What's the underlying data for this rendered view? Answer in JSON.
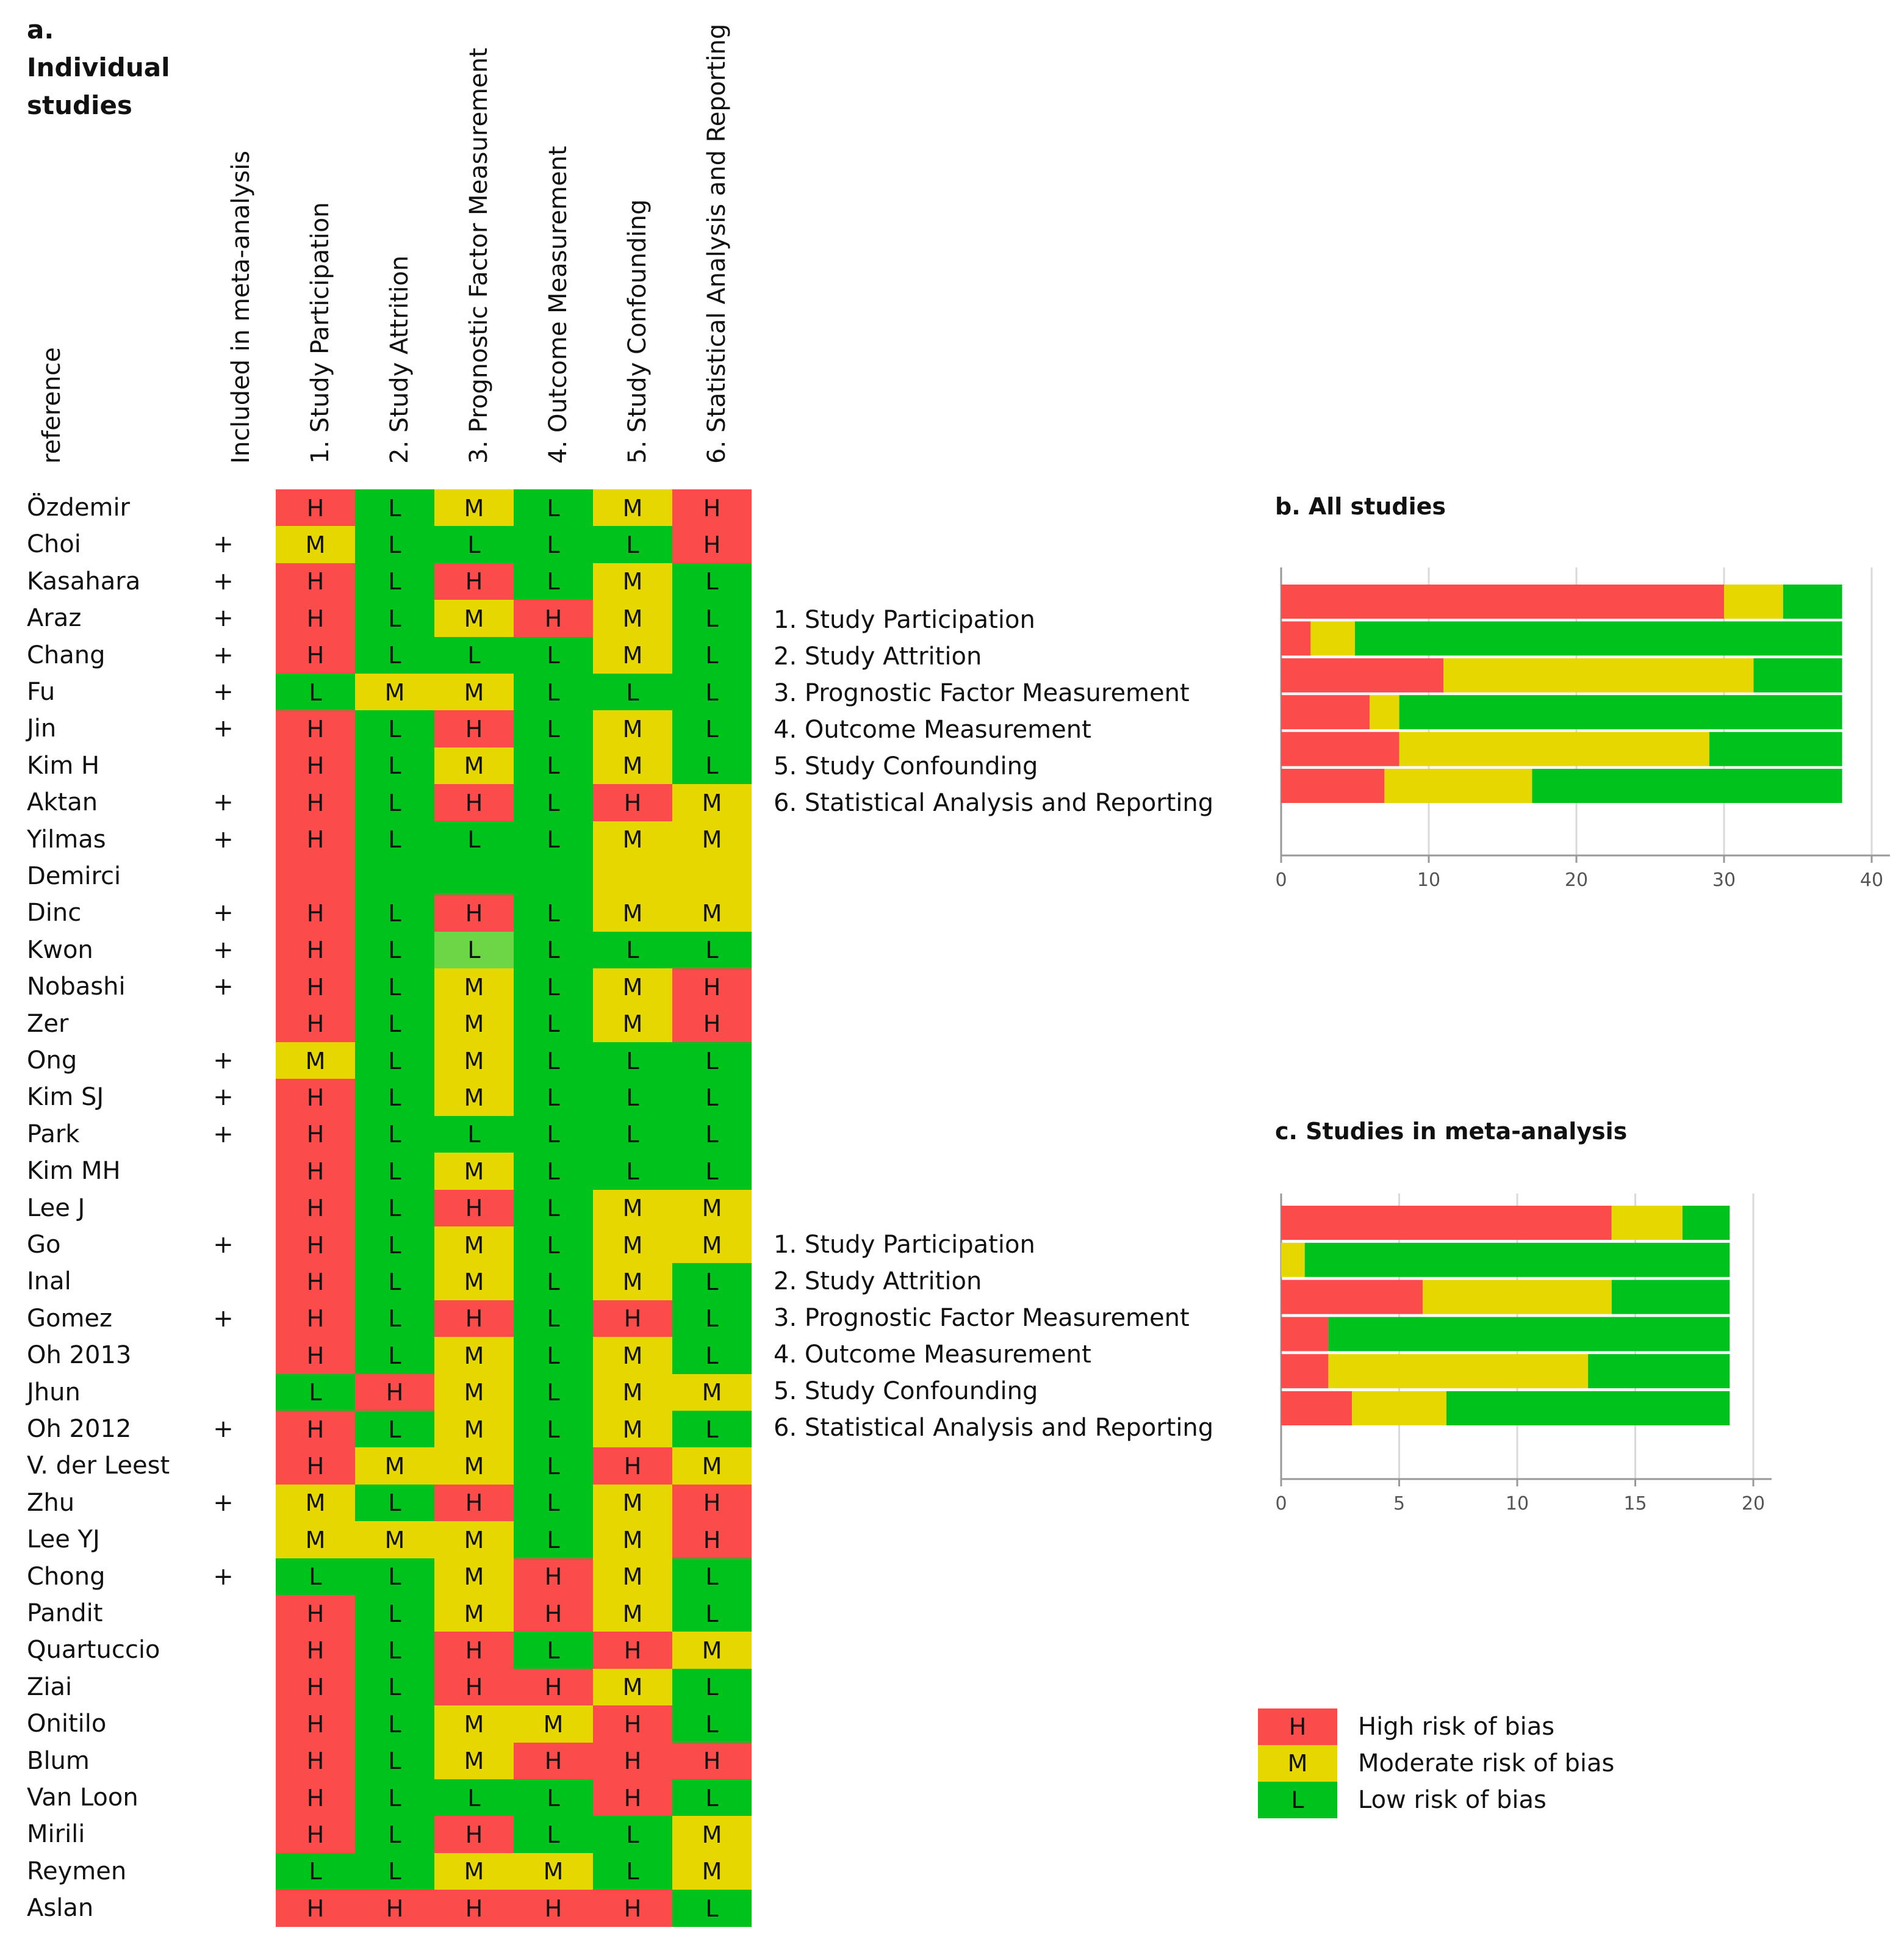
{
  "panel_a": {
    "title_lines": [
      "a.",
      "Individual",
      "studies"
    ],
    "column_headers": [
      "reference",
      "Included in meta-analysis",
      "1. Study Participation",
      "2. Study Attrition",
      "3. Prognostic Factor Measurement",
      "4. Outcome Measurement",
      "5. Study Confounding",
      "6. Statistical Analysis and Reporting"
    ],
    "rows": [
      {
        "ref": "Özdemir",
        "meta": "",
        "c": [
          "H",
          "L",
          "M",
          "L",
          "M",
          "H"
        ]
      },
      {
        "ref": "Choi",
        "meta": "+",
        "c": [
          "M",
          "L",
          "L",
          "L",
          "L",
          "H"
        ]
      },
      {
        "ref": "Kasahara",
        "meta": "+",
        "c": [
          "H",
          "L",
          "H",
          "L",
          "M",
          "L"
        ]
      },
      {
        "ref": "Araz",
        "meta": "+",
        "c": [
          "H",
          "L",
          "M",
          "H",
          "M",
          "L"
        ]
      },
      {
        "ref": "Chang",
        "meta": "+",
        "c": [
          "H",
          "L",
          "L",
          "L",
          "M",
          "L"
        ]
      },
      {
        "ref": "Fu",
        "meta": "+",
        "c": [
          "L",
          "M",
          "M",
          "L",
          "L",
          "L"
        ]
      },
      {
        "ref": "Jin",
        "meta": "+",
        "c": [
          "H",
          "L",
          "H",
          "L",
          "M",
          "L"
        ]
      },
      {
        "ref": "Kim H",
        "meta": "",
        "c": [
          "H",
          "L",
          "M",
          "L",
          "M",
          "L"
        ]
      },
      {
        "ref": "Aktan",
        "meta": "+",
        "c": [
          "H",
          "L",
          "H",
          "L",
          "H",
          "M"
        ]
      },
      {
        "ref": "Yilmas",
        "meta": "+",
        "c": [
          "H",
          "L",
          "L",
          "L",
          "M",
          "M"
        ]
      },
      {
        "ref": "Demirci",
        "meta": "",
        "c": [
          "H",
          "L",
          "L",
          "L",
          "M",
          "M"
        ],
        "blank": true
      },
      {
        "ref": "Dinc",
        "meta": "+",
        "c": [
          "H",
          "L",
          "H",
          "L",
          "M",
          "M"
        ]
      },
      {
        "ref": "Kwon",
        "meta": "+",
        "c": [
          "H",
          "L",
          "L",
          "L",
          "L",
          "L"
        ],
        "light": 2
      },
      {
        "ref": "Nobashi",
        "meta": "+",
        "c": [
          "H",
          "L",
          "M",
          "L",
          "M",
          "H"
        ]
      },
      {
        "ref": "Zer",
        "meta": "",
        "c": [
          "H",
          "L",
          "M",
          "L",
          "M",
          "H"
        ]
      },
      {
        "ref": "Ong",
        "meta": "+",
        "c": [
          "M",
          "L",
          "M",
          "L",
          "L",
          "L"
        ]
      },
      {
        "ref": "Kim SJ",
        "meta": "+",
        "c": [
          "H",
          "L",
          "M",
          "L",
          "L",
          "L"
        ]
      },
      {
        "ref": "Park",
        "meta": "+",
        "c": [
          "H",
          "L",
          "L",
          "L",
          "L",
          "L"
        ]
      },
      {
        "ref": "Kim MH",
        "meta": "",
        "c": [
          "H",
          "L",
          "M",
          "L",
          "L",
          "L"
        ]
      },
      {
        "ref": "Lee J",
        "meta": "",
        "c": [
          "H",
          "L",
          "H",
          "L",
          "M",
          "M"
        ]
      },
      {
        "ref": "Go",
        "meta": "+",
        "c": [
          "H",
          "L",
          "M",
          "L",
          "M",
          "M"
        ]
      },
      {
        "ref": "Inal",
        "meta": "",
        "c": [
          "H",
          "L",
          "M",
          "L",
          "M",
          "L"
        ]
      },
      {
        "ref": "Gomez",
        "meta": "+",
        "c": [
          "H",
          "L",
          "H",
          "L",
          "H",
          "L"
        ]
      },
      {
        "ref": "Oh 2013",
        "meta": "",
        "c": [
          "H",
          "L",
          "M",
          "L",
          "M",
          "L"
        ]
      },
      {
        "ref": "Jhun",
        "meta": "",
        "c": [
          "L",
          "H",
          "M",
          "L",
          "M",
          "M"
        ]
      },
      {
        "ref": "Oh 2012",
        "meta": "+",
        "c": [
          "H",
          "L",
          "M",
          "L",
          "M",
          "L"
        ]
      },
      {
        "ref": "V. der Leest",
        "meta": "",
        "c": [
          "H",
          "M",
          "M",
          "L",
          "H",
          "M"
        ]
      },
      {
        "ref": "Zhu",
        "meta": "+",
        "c": [
          "M",
          "L",
          "H",
          "L",
          "M",
          "H"
        ]
      },
      {
        "ref": "Lee YJ",
        "meta": "",
        "c": [
          "M",
          "M",
          "M",
          "L",
          "M",
          "H"
        ]
      },
      {
        "ref": "Chong",
        "meta": "+",
        "c": [
          "L",
          "L",
          "M",
          "H",
          "M",
          "L"
        ]
      },
      {
        "ref": "Pandit",
        "meta": "",
        "c": [
          "H",
          "L",
          "M",
          "H",
          "M",
          "L"
        ]
      },
      {
        "ref": "Quartuccio",
        "meta": "",
        "c": [
          "H",
          "L",
          "H",
          "L",
          "H",
          "M"
        ]
      },
      {
        "ref": "Ziai",
        "meta": "",
        "c": [
          "H",
          "L",
          "H",
          "H",
          "M",
          "L"
        ]
      },
      {
        "ref": "Onitilo",
        "meta": "",
        "c": [
          "H",
          "L",
          "M",
          "M",
          "H",
          "L"
        ]
      },
      {
        "ref": "Blum",
        "meta": "",
        "c": [
          "H",
          "L",
          "M",
          "H",
          "H",
          "H"
        ]
      },
      {
        "ref": "Van Loon",
        "meta": "",
        "c": [
          "H",
          "L",
          "L",
          "L",
          "H",
          "L"
        ]
      },
      {
        "ref": "Mirili",
        "meta": "",
        "c": [
          "H",
          "L",
          "H",
          "L",
          "L",
          "M"
        ]
      },
      {
        "ref": "Reymen",
        "meta": "",
        "c": [
          "L",
          "L",
          "M",
          "M",
          "L",
          "M"
        ]
      },
      {
        "ref": "Aslan",
        "meta": "",
        "c": [
          "H",
          "H",
          "H",
          "H",
          "H",
          "L"
        ]
      }
    ]
  },
  "domain_list": [
    "1. Study Participation",
    "2. Study Attrition",
    "3. Prognostic Factor Measurement",
    "4. Outcome Measurement",
    "5. Study Confounding",
    "6. Statistical Analysis and Reporting"
  ],
  "chart_data": [
    {
      "type": "bar",
      "orientation": "horizontal-stacked",
      "title": "b. All studies",
      "categories": [
        "1. Study Participation",
        "2. Study Attrition",
        "3. Prognostic Factor Measurement",
        "4. Outcome Measurement",
        "5. Study Confounding",
        "6. Statistical Analysis and Reporting"
      ],
      "series": [
        {
          "name": "High risk of bias",
          "color": "#fb4b4b",
          "values": [
            30,
            2,
            11,
            6,
            8,
            7
          ]
        },
        {
          "name": "Moderate risk of bias",
          "color": "#e6d700",
          "values": [
            4,
            3,
            21,
            2,
            21,
            10
          ]
        },
        {
          "name": "Low risk of bias",
          "color": "#00c21c",
          "values": [
            4,
            33,
            6,
            30,
            9,
            21
          ]
        }
      ],
      "xlim": [
        0,
        40
      ],
      "xticks": [
        0,
        10,
        20,
        30,
        40
      ],
      "grid": true
    },
    {
      "type": "bar",
      "orientation": "horizontal-stacked",
      "title": "c. Studies in meta-analysis",
      "categories": [
        "1. Study Participation",
        "2. Study Attrition",
        "3. Prognostic Factor Measurement",
        "4. Outcome Measurement",
        "5. Study Confounding",
        "6. Statistical Analysis and Reporting"
      ],
      "series": [
        {
          "name": "High risk of bias",
          "color": "#fb4b4b",
          "values": [
            14,
            0,
            6,
            2,
            2,
            3
          ]
        },
        {
          "name": "Moderate risk of bias",
          "color": "#e6d700",
          "values": [
            3,
            1,
            8,
            0,
            11,
            4
          ]
        },
        {
          "name": "Low risk of bias",
          "color": "#00c21c",
          "values": [
            2,
            18,
            5,
            17,
            6,
            12
          ]
        }
      ],
      "xlim": [
        0,
        20
      ],
      "xticks": [
        0,
        5,
        10,
        15,
        20
      ],
      "grid": true
    }
  ],
  "legend": [
    {
      "code": "H",
      "label": "High risk of bias",
      "color": "#fb4b4b"
    },
    {
      "code": "M",
      "label": "Moderate risk of bias",
      "color": "#e6d700"
    },
    {
      "code": "L",
      "label": "Low risk of bias",
      "color": "#00c21c"
    }
  ]
}
